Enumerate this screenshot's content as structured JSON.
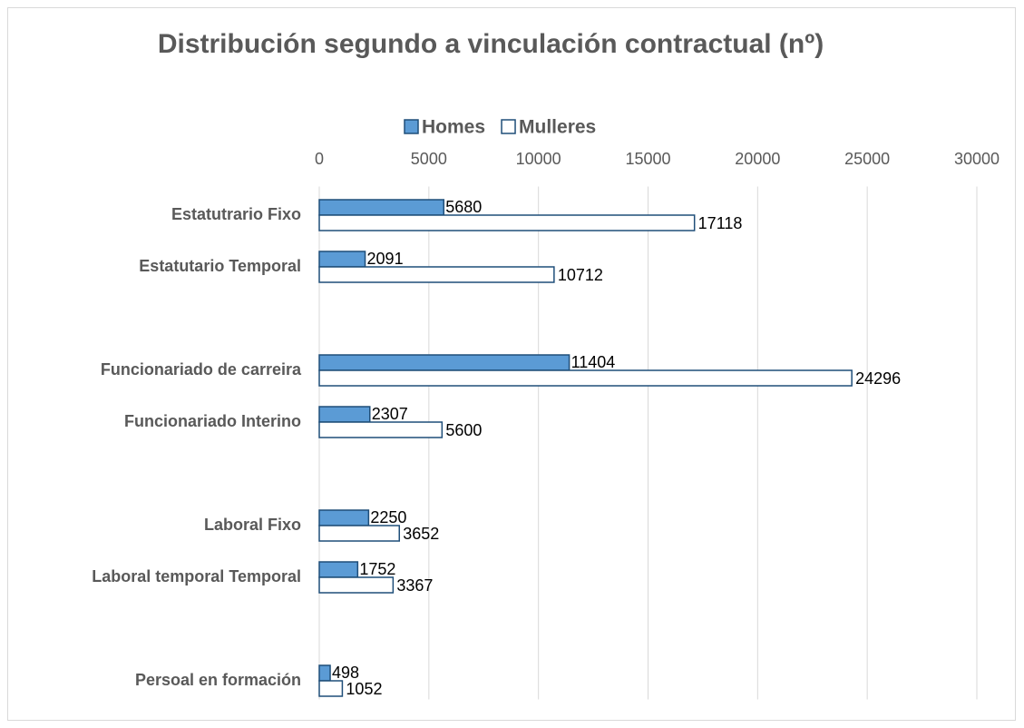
{
  "chart_data": {
    "type": "barh",
    "title": "Distribución segundo a vinculación contractual  (nº)",
    "categories": [
      "Estatutrario Fixo",
      "Estatutario Temporal",
      null,
      "Funcionariado de carreira",
      "Funcionariado Interino",
      null,
      "Laboral Fixo",
      "Laboral temporal Temporal",
      null,
      "Persoal en formación"
    ],
    "series": [
      {
        "name": "Homes",
        "color": "#5b9bd5",
        "values": [
          5680,
          2091,
          null,
          11404,
          2307,
          null,
          2250,
          1752,
          null,
          498
        ]
      },
      {
        "name": "Mulleres",
        "color": "#ffffff",
        "values": [
          17118,
          10712,
          null,
          24296,
          5600,
          null,
          3652,
          3367,
          null,
          1052
        ]
      }
    ],
    "edgecolor": "#1f4e79",
    "xlim": [
      0,
      30000
    ],
    "xticks": [
      0,
      5000,
      10000,
      15000,
      20000,
      25000,
      30000
    ],
    "grid": true,
    "legend": "top"
  }
}
